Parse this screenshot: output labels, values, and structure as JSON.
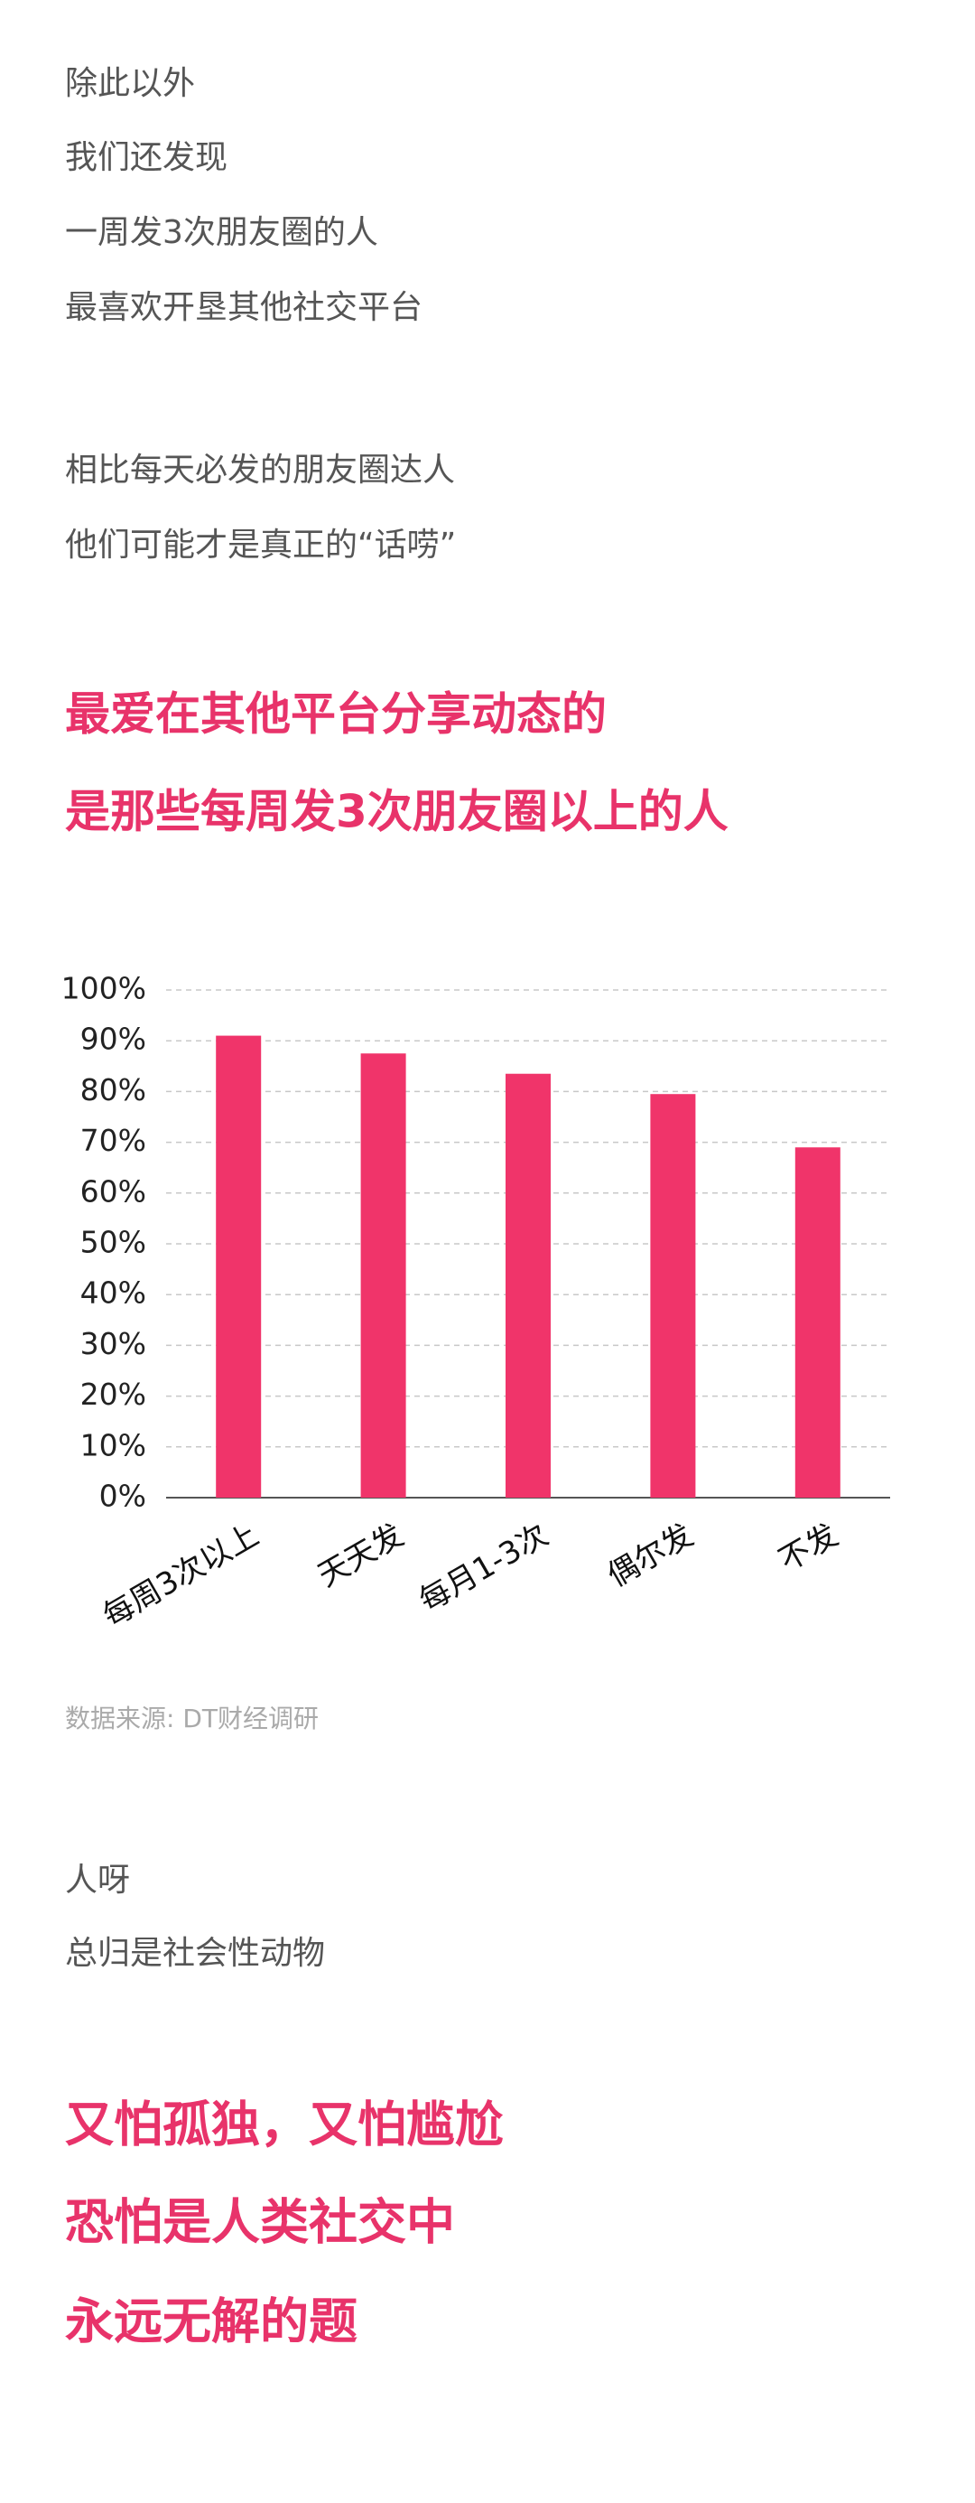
{
  "intro": [
    "除此以外",
    "我们还发现",
    "一周发3次朋友圈的人",
    "最喜欢开垦其他社交平台",
    "相比每天必发的朋友圈达人",
    "他们可能才是真正的“话唠”"
  ],
  "headline": [
    "最爱在其他平台分享动态的",
    "是那些每周发3次朋友圈以上的人"
  ],
  "chart_data": {
    "type": "bar",
    "categories": [
      "每周3次以上",
      "天天发",
      "每月1-3次",
      "偶尔发",
      "不发"
    ],
    "values": [
      91,
      87.5,
      83.5,
      79.5,
      69
    ],
    "color": "#f0346a",
    "ylim": [
      0,
      100
    ],
    "yticks": [
      {
        "value": 0,
        "label": "0%"
      },
      {
        "value": 10,
        "label": "10%"
      },
      {
        "value": 20,
        "label": "20%"
      },
      {
        "value": 30,
        "label": "30%"
      },
      {
        "value": 40,
        "label": "40%"
      },
      {
        "value": 50,
        "label": "50%"
      },
      {
        "value": 60,
        "label": "60%"
      },
      {
        "value": 70,
        "label": "70%"
      },
      {
        "value": 80,
        "label": "80%"
      },
      {
        "value": 90,
        "label": "90%"
      },
      {
        "value": 100,
        "label": "100%"
      }
    ],
    "grid": true
  },
  "source": "数据来源: DT财经调研",
  "outro": [
    "人呀",
    "总归是社会性动物"
  ],
  "closing": [
    "又怕孤独，又怕尴尬",
    "恐怕是人类社交中",
    "永远无解的题"
  ]
}
